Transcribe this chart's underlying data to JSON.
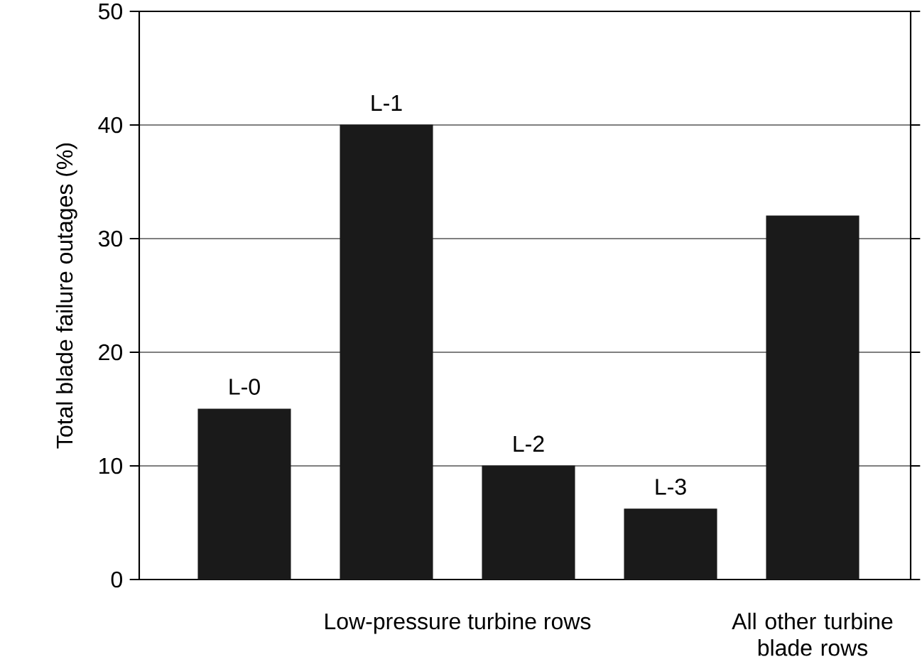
{
  "chart_data": {
    "type": "bar",
    "ylabel": "Total blade failure outages (%)",
    "xlabel": "Low-pressure turbine rows",
    "categories": [
      "L-0",
      "L-1",
      "L-2",
      "L-3",
      null
    ],
    "values": [
      15,
      40,
      10,
      6.2,
      32
    ],
    "color": "#1a1a1a",
    "ylim": [
      0,
      50
    ],
    "yticks": [
      0,
      10,
      20,
      30,
      40,
      50
    ],
    "grid": "y",
    "annotations": [
      "All other turbine blade rows"
    ]
  }
}
